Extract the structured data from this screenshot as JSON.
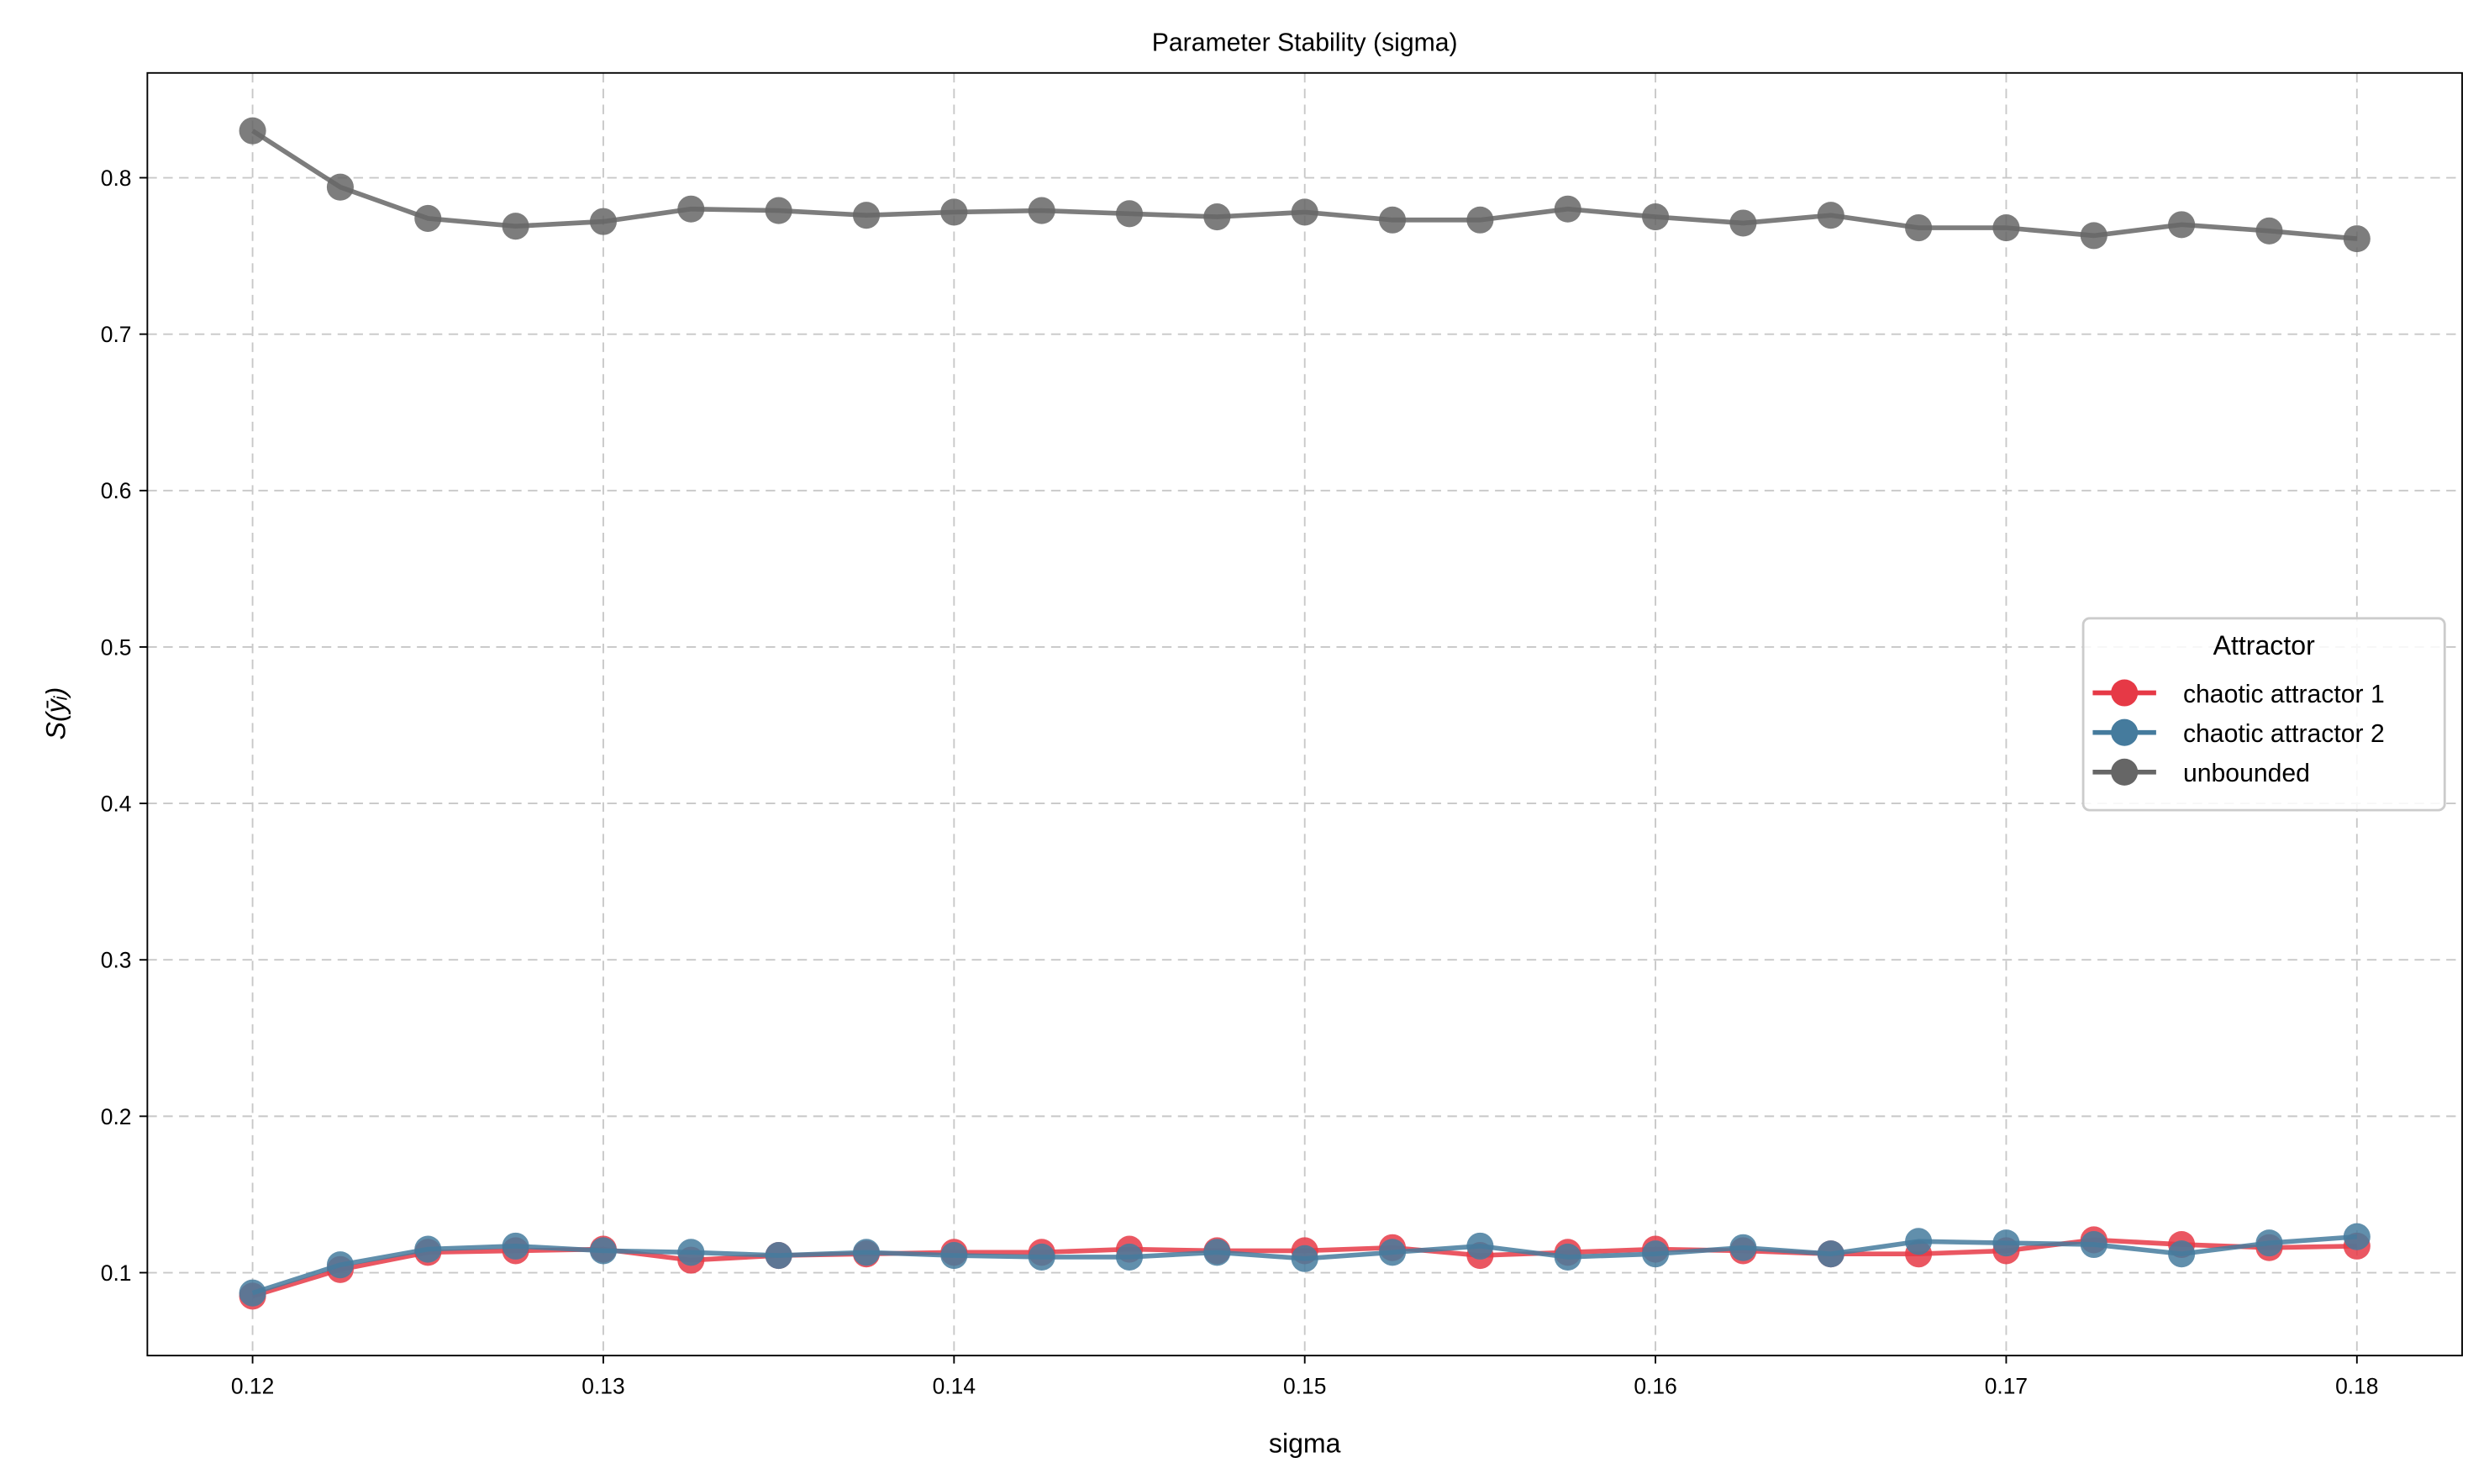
{
  "chart_data": {
    "type": "line",
    "title": "Parameter Stability (sigma)",
    "xlabel": "sigma",
    "ylabel": "S(ȳᵢ)",
    "xlim": [
      0.117,
      0.183
    ],
    "ylim": [
      0.047,
      0.867
    ],
    "xticks": [
      0.12,
      0.13,
      0.14,
      0.15,
      0.16,
      0.17,
      0.18
    ],
    "xtick_labels": [
      "0.12",
      "0.13",
      "0.14",
      "0.15",
      "0.16",
      "0.17",
      "0.18"
    ],
    "yticks": [
      0.1,
      0.2,
      0.3,
      0.4,
      0.5,
      0.6,
      0.7,
      0.8
    ],
    "ytick_labels": [
      "0.1",
      "0.2",
      "0.3",
      "0.4",
      "0.5",
      "0.6",
      "0.7",
      "0.8"
    ],
    "grid": true,
    "legend": {
      "title": "Attractor",
      "placement": "center-right"
    },
    "x": [
      0.12,
      0.1225,
      0.125,
      0.1275,
      0.13,
      0.1325,
      0.135,
      0.1375,
      0.14,
      0.1425,
      0.145,
      0.1475,
      0.15,
      0.1525,
      0.155,
      0.1575,
      0.16,
      0.1625,
      0.165,
      0.1675,
      0.17,
      0.1725,
      0.175,
      0.1775,
      0.18
    ],
    "series": [
      {
        "name": "chaotic attractor 1",
        "color": "#e63946",
        "values": [
          0.085,
          0.102,
          0.113,
          0.114,
          0.115,
          0.108,
          0.111,
          0.112,
          0.113,
          0.113,
          0.115,
          0.114,
          0.114,
          0.116,
          0.111,
          0.113,
          0.115,
          0.114,
          0.112,
          0.112,
          0.114,
          0.121,
          0.118,
          0.116,
          0.117
        ]
      },
      {
        "name": "chaotic attractor 2",
        "color": "#457b9d",
        "values": [
          0.087,
          0.105,
          0.115,
          0.117,
          0.114,
          0.113,
          0.111,
          0.113,
          0.111,
          0.11,
          0.11,
          0.113,
          0.109,
          0.113,
          0.117,
          0.11,
          0.112,
          0.116,
          0.112,
          0.12,
          0.119,
          0.118,
          0.112,
          0.119,
          0.123
        ]
      },
      {
        "name": "unbounded",
        "color": "#666666",
        "values": [
          0.83,
          0.794,
          0.774,
          0.769,
          0.772,
          0.78,
          0.779,
          0.776,
          0.778,
          0.779,
          0.777,
          0.775,
          0.778,
          0.773,
          0.773,
          0.78,
          0.775,
          0.771,
          0.776,
          0.768,
          0.768,
          0.763,
          0.77,
          0.766,
          0.761
        ]
      }
    ]
  }
}
